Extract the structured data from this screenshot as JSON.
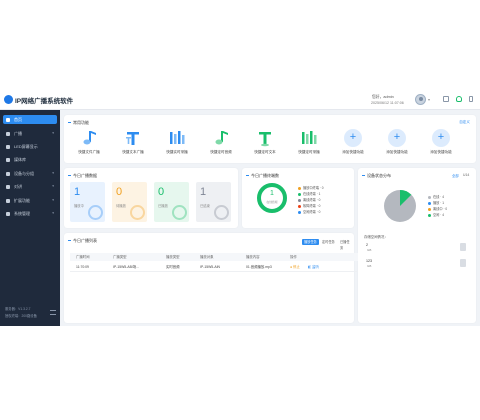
{
  "app": {
    "title": "IP网络广播系统软件"
  },
  "header": {
    "greeting": "您好，admin",
    "datetime": "2025/06/12 11:07:06"
  },
  "sidebar": {
    "items": [
      {
        "label": "首页",
        "icon": "home-icon"
      },
      {
        "label": "广播",
        "icon": "broadcast-icon"
      },
      {
        "label": "LED屏幕显示",
        "icon": "led-icon"
      },
      {
        "label": "媒体库",
        "icon": "media-icon"
      },
      {
        "label": "设备与分组",
        "icon": "device-icon"
      },
      {
        "label": "对讲",
        "icon": "intercom-icon"
      },
      {
        "label": "扩展功能",
        "icon": "extension-icon"
      },
      {
        "label": "系统管理",
        "icon": "settings-icon"
      }
    ],
    "version": "服务器：V1.3.2.7",
    "device": "授权终端：200路设备"
  },
  "quick": {
    "title": "常用功能",
    "manage": "自定义",
    "items": [
      {
        "label": "快捷文件广播",
        "icon": "music-note-icon"
      },
      {
        "label": "快捷文本广播",
        "icon": "text-icon"
      },
      {
        "label": "快捷实时采播",
        "icon": "mic-bars-icon"
      },
      {
        "label": "快捷定时音频",
        "icon": "music-note-icon"
      },
      {
        "label": "快捷定时文本",
        "icon": "text-icon"
      },
      {
        "label": "快捷定时采播",
        "icon": "mic-bars-icon"
      },
      {
        "label": "添加快捷功能",
        "icon": "plus-icon"
      },
      {
        "label": "添加快捷功能",
        "icon": "plus-icon"
      },
      {
        "label": "添加快捷功能",
        "icon": "plus-icon"
      }
    ]
  },
  "status": {
    "title": "今日广播数据",
    "cards": [
      {
        "value": "1",
        "label": "播放中",
        "color": "#2d8cf0",
        "bg": "#e8f2fe"
      },
      {
        "value": "0",
        "label": "待播放",
        "color": "#f0a020",
        "bg": "#fdf3e3"
      },
      {
        "value": "0",
        "label": "已播放",
        "color": "#19be6b",
        "bg": "#e6f7ee"
      },
      {
        "value": "1",
        "label": "已结束",
        "color": "#808695",
        "bg": "#eef0f3"
      }
    ]
  },
  "terminal": {
    "title": "今日广播终端数",
    "center_value": "1",
    "center_label": "在线终端",
    "legend": [
      {
        "label": "播放中终端 · 0",
        "color": "#f0a020"
      },
      {
        "label": "在线终端 · 1",
        "color": "#19be6b"
      },
      {
        "label": "离线终端 · 0",
        "color": "#808695"
      },
      {
        "label": "故障终端 · 0",
        "color": "#ed4014"
      },
      {
        "label": "空闲终端 · 0",
        "color": "#2d8cf0"
      }
    ]
  },
  "device_panel": {
    "title": "设备状态分布",
    "tab1": "全部",
    "tab2": "U14",
    "legend": [
      {
        "label": "在线 · 4",
        "color": "#b4b8bf"
      },
      {
        "label": "播放 · 1",
        "color": "#2d8cf0"
      },
      {
        "label": "离线中 · 0",
        "color": "#f0a020"
      },
      {
        "label": "空闲 · 4",
        "color": "#19be6b"
      }
    ],
    "storage_title": "存储空间情况：",
    "storage": [
      {
        "value": "2",
        "unit": "GB"
      },
      {
        "value": "123",
        "unit": "GB"
      }
    ]
  },
  "tasks": {
    "title": "今日广播列表",
    "tabs": [
      "播放任务",
      "定时任务",
      "已播任务"
    ],
    "columns": [
      "广播时间",
      "广播类型",
      "播放类型",
      "播放对象",
      "播放内容",
      "操作"
    ],
    "rows": [
      {
        "time": "11:70:09",
        "type": "IP-15W5-AB/场...",
        "play_type": "实时音频",
        "target": "IP-15W5-AIN",
        "content": "01.音频播放.mp3",
        "stop": "停止",
        "listen": "监听"
      }
    ]
  }
}
